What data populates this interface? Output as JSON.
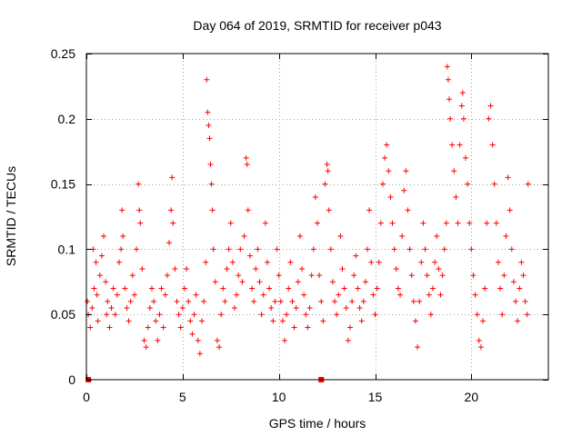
{
  "chart_data": {
    "type": "scatter",
    "title": "Day 064 of 2019, SRMTID for receiver p043",
    "xlabel": "GPS time / hours",
    "ylabel": "SRMTID / TECUs",
    "xlim": [
      0,
      24
    ],
    "ylim": [
      0,
      0.25
    ],
    "xticks": [
      0,
      5,
      10,
      15,
      20
    ],
    "xtick_labels": [
      "0",
      "5",
      "10",
      "15",
      "20"
    ],
    "yticks": [
      0,
      0.05,
      0.1,
      0.15,
      0.2,
      0.25
    ],
    "ytick_labels": [
      "0",
      "0.05",
      "0.1",
      "0.15",
      "0.2",
      "0.25"
    ],
    "grid": true,
    "marker": "+",
    "series": [
      {
        "name": "SRMTID",
        "color": "#ff0000",
        "points": [
          [
            0.05,
            0.06
          ],
          [
            0.1,
            0.05
          ],
          [
            0.2,
            0.04
          ],
          [
            0.3,
            0.055
          ],
          [
            0.35,
            0.1
          ],
          [
            0.4,
            0.07
          ],
          [
            0.5,
            0.09
          ],
          [
            0.55,
            0.065
          ],
          [
            0.6,
            0.045
          ],
          [
            0.7,
            0.08
          ],
          [
            0.8,
            0.095
          ],
          [
            0.9,
            0.11
          ],
          [
            1.0,
            0.075
          ],
          [
            1.05,
            0.05
          ],
          [
            1.1,
            0.06
          ],
          [
            1.2,
            0.04
          ],
          [
            1.3,
            0.055
          ],
          [
            1.4,
            0.07
          ],
          [
            1.5,
            0.05
          ],
          [
            1.6,
            0.065
          ],
          [
            1.7,
            0.09
          ],
          [
            1.8,
            0.1
          ],
          [
            1.85,
            0.13
          ],
          [
            1.9,
            0.11
          ],
          [
            2.0,
            0.07
          ],
          [
            2.1,
            0.055
          ],
          [
            2.2,
            0.045
          ],
          [
            2.3,
            0.06
          ],
          [
            2.4,
            0.08
          ],
          [
            2.5,
            0.065
          ],
          [
            2.6,
            0.1
          ],
          [
            2.7,
            0.15
          ],
          [
            2.75,
            0.13
          ],
          [
            2.8,
            0.12
          ],
          [
            2.9,
            0.085
          ],
          [
            3.0,
            0.03
          ],
          [
            3.1,
            0.025
          ],
          [
            3.2,
            0.04
          ],
          [
            3.3,
            0.055
          ],
          [
            3.4,
            0.07
          ],
          [
            3.5,
            0.06
          ],
          [
            3.6,
            0.045
          ],
          [
            3.7,
            0.03
          ],
          [
            3.8,
            0.05
          ],
          [
            3.9,
            0.07
          ],
          [
            4.0,
            0.04
          ],
          [
            4.1,
            0.065
          ],
          [
            4.2,
            0.08
          ],
          [
            4.3,
            0.105
          ],
          [
            4.4,
            0.13
          ],
          [
            4.45,
            0.155
          ],
          [
            4.5,
            0.12
          ],
          [
            4.6,
            0.085
          ],
          [
            4.7,
            0.06
          ],
          [
            4.8,
            0.05
          ],
          [
            4.9,
            0.04
          ],
          [
            5.0,
            0.055
          ],
          [
            5.1,
            0.07
          ],
          [
            5.2,
            0.085
          ],
          [
            5.3,
            0.06
          ],
          [
            5.4,
            0.045
          ],
          [
            5.5,
            0.035
          ],
          [
            5.6,
            0.05
          ],
          [
            5.7,
            0.065
          ],
          [
            5.8,
            0.03
          ],
          [
            5.9,
            0.02
          ],
          [
            6.0,
            0.045
          ],
          [
            6.1,
            0.06
          ],
          [
            6.2,
            0.09
          ],
          [
            6.25,
            0.23
          ],
          [
            6.3,
            0.205
          ],
          [
            6.35,
            0.195
          ],
          [
            6.4,
            0.185
          ],
          [
            6.45,
            0.165
          ],
          [
            6.5,
            0.15
          ],
          [
            6.55,
            0.13
          ],
          [
            6.6,
            0.1
          ],
          [
            6.7,
            0.075
          ],
          [
            6.8,
            0.03
          ],
          [
            6.9,
            0.025
          ],
          [
            7.0,
            0.05
          ],
          [
            7.1,
            0.07
          ],
          [
            7.2,
            0.06
          ],
          [
            7.3,
            0.085
          ],
          [
            7.4,
            0.1
          ],
          [
            7.5,
            0.12
          ],
          [
            7.6,
            0.09
          ],
          [
            7.7,
            0.055
          ],
          [
            7.8,
            0.065
          ],
          [
            7.9,
            0.08
          ],
          [
            8.0,
            0.1
          ],
          [
            8.1,
            0.075
          ],
          [
            8.2,
            0.11
          ],
          [
            8.3,
            0.17
          ],
          [
            8.35,
            0.165
          ],
          [
            8.4,
            0.13
          ],
          [
            8.5,
            0.095
          ],
          [
            8.6,
            0.07
          ],
          [
            8.7,
            0.06
          ],
          [
            8.8,
            0.085
          ],
          [
            8.9,
            0.1
          ],
          [
            9.0,
            0.075
          ],
          [
            9.1,
            0.05
          ],
          [
            9.2,
            0.065
          ],
          [
            9.3,
            0.12
          ],
          [
            9.4,
            0.09
          ],
          [
            9.5,
            0.07
          ],
          [
            9.6,
            0.055
          ],
          [
            9.7,
            0.045
          ],
          [
            9.8,
            0.06
          ],
          [
            9.9,
            0.1
          ],
          [
            10.0,
            0.08
          ],
          [
            10.1,
            0.06
          ],
          [
            10.2,
            0.045
          ],
          [
            10.3,
            0.03
          ],
          [
            10.4,
            0.05
          ],
          [
            10.5,
            0.07
          ],
          [
            10.6,
            0.09
          ],
          [
            10.7,
            0.06
          ],
          [
            10.8,
            0.04
          ],
          [
            10.9,
            0.055
          ],
          [
            11.0,
            0.075
          ],
          [
            11.1,
            0.11
          ],
          [
            11.2,
            0.085
          ],
          [
            11.3,
            0.065
          ],
          [
            11.4,
            0.05
          ],
          [
            11.5,
            0.04
          ],
          [
            11.6,
            0.055
          ],
          [
            11.7,
            0.08
          ],
          [
            11.8,
            0.1
          ],
          [
            11.9,
            0.14
          ],
          [
            12.0,
            0.12
          ],
          [
            12.1,
            0.08
          ],
          [
            12.2,
            0.06
          ],
          [
            12.3,
            0.045
          ],
          [
            12.4,
            0.15
          ],
          [
            12.5,
            0.165
          ],
          [
            12.55,
            0.16
          ],
          [
            12.6,
            0.13
          ],
          [
            12.7,
            0.1
          ],
          [
            12.8,
            0.075
          ],
          [
            12.9,
            0.06
          ],
          [
            13.0,
            0.05
          ],
          [
            13.1,
            0.065
          ],
          [
            13.2,
            0.11
          ],
          [
            13.3,
            0.085
          ],
          [
            13.4,
            0.07
          ],
          [
            13.5,
            0.055
          ],
          [
            13.6,
            0.03
          ],
          [
            13.7,
            0.04
          ],
          [
            13.8,
            0.06
          ],
          [
            13.9,
            0.08
          ],
          [
            14.0,
            0.095
          ],
          [
            14.1,
            0.07
          ],
          [
            14.2,
            0.055
          ],
          [
            14.3,
            0.045
          ],
          [
            14.4,
            0.06
          ],
          [
            14.5,
            0.075
          ],
          [
            14.6,
            0.1
          ],
          [
            14.7,
            0.13
          ],
          [
            14.8,
            0.09
          ],
          [
            14.9,
            0.065
          ],
          [
            15.0,
            0.05
          ],
          [
            15.1,
            0.07
          ],
          [
            15.2,
            0.09
          ],
          [
            15.3,
            0.12
          ],
          [
            15.4,
            0.15
          ],
          [
            15.5,
            0.17
          ],
          [
            15.6,
            0.18
          ],
          [
            15.7,
            0.16
          ],
          [
            15.8,
            0.14
          ],
          [
            15.9,
            0.12
          ],
          [
            16.0,
            0.1
          ],
          [
            16.1,
            0.085
          ],
          [
            16.2,
            0.07
          ],
          [
            16.3,
            0.065
          ],
          [
            16.4,
            0.11
          ],
          [
            16.5,
            0.145
          ],
          [
            16.6,
            0.16
          ],
          [
            16.7,
            0.13
          ],
          [
            16.8,
            0.1
          ],
          [
            16.9,
            0.08
          ],
          [
            17.0,
            0.06
          ],
          [
            17.1,
            0.045
          ],
          [
            17.2,
            0.025
          ],
          [
            17.3,
            0.06
          ],
          [
            17.4,
            0.09
          ],
          [
            17.5,
            0.12
          ],
          [
            17.6,
            0.1
          ],
          [
            17.7,
            0.08
          ],
          [
            17.8,
            0.065
          ],
          [
            17.9,
            0.05
          ],
          [
            18.0,
            0.07
          ],
          [
            18.1,
            0.09
          ],
          [
            18.2,
            0.11
          ],
          [
            18.3,
            0.085
          ],
          [
            18.4,
            0.065
          ],
          [
            18.5,
            0.08
          ],
          [
            18.6,
            0.1
          ],
          [
            18.7,
            0.12
          ],
          [
            18.75,
            0.24
          ],
          [
            18.8,
            0.23
          ],
          [
            18.85,
            0.215
          ],
          [
            18.9,
            0.2
          ],
          [
            19.0,
            0.18
          ],
          [
            19.1,
            0.16
          ],
          [
            19.2,
            0.14
          ],
          [
            19.3,
            0.12
          ],
          [
            19.4,
            0.18
          ],
          [
            19.5,
            0.21
          ],
          [
            19.55,
            0.22
          ],
          [
            19.6,
            0.2
          ],
          [
            19.7,
            0.17
          ],
          [
            19.8,
            0.15
          ],
          [
            19.9,
            0.12
          ],
          [
            20.0,
            0.1
          ],
          [
            20.1,
            0.08
          ],
          [
            20.2,
            0.065
          ],
          [
            20.3,
            0.05
          ],
          [
            20.4,
            0.03
          ],
          [
            20.5,
            0.025
          ],
          [
            20.6,
            0.045
          ],
          [
            20.7,
            0.07
          ],
          [
            20.8,
            0.12
          ],
          [
            20.9,
            0.2
          ],
          [
            21.0,
            0.21
          ],
          [
            21.1,
            0.18
          ],
          [
            21.2,
            0.15
          ],
          [
            21.3,
            0.12
          ],
          [
            21.4,
            0.09
          ],
          [
            21.5,
            0.07
          ],
          [
            21.6,
            0.05
          ],
          [
            21.7,
            0.08
          ],
          [
            21.8,
            0.11
          ],
          [
            21.9,
            0.155
          ],
          [
            22.0,
            0.13
          ],
          [
            22.1,
            0.1
          ],
          [
            22.2,
            0.075
          ],
          [
            22.3,
            0.06
          ],
          [
            22.4,
            0.045
          ],
          [
            22.5,
            0.07
          ],
          [
            22.6,
            0.09
          ],
          [
            22.7,
            0.08
          ],
          [
            22.8,
            0.06
          ],
          [
            22.9,
            0.05
          ],
          [
            22.95,
            0.15
          ]
        ]
      }
    ],
    "zero_markers_x": [
      0.1,
      12.2
    ]
  }
}
